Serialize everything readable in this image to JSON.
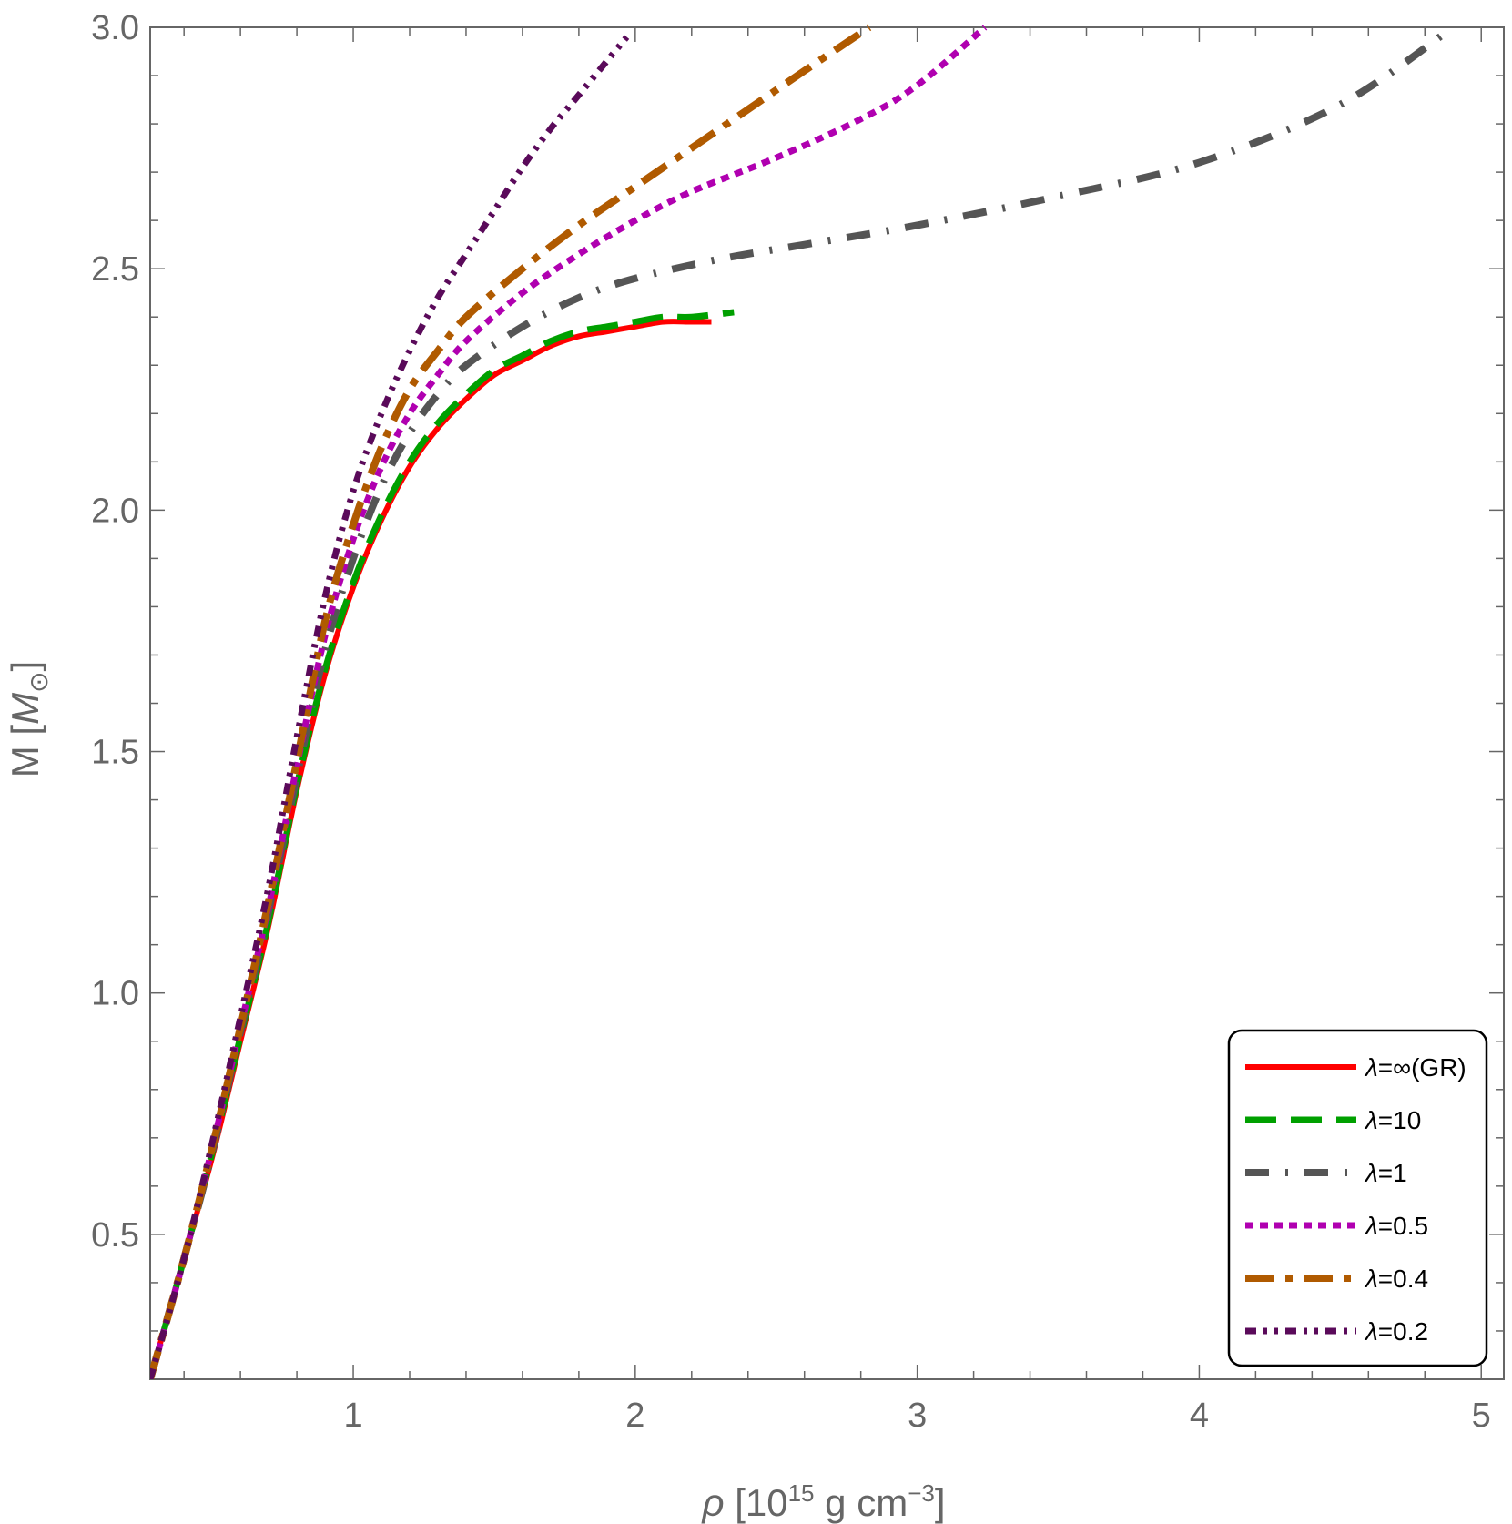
{
  "chart_data": {
    "type": "line",
    "xlabel": {
      "symbol": "ρ",
      "text": " [10",
      "sup1": "15",
      "mid": " g cm",
      "sup2": "−3",
      "end": "]"
    },
    "ylabel": {
      "text": "M [",
      "symbol": "M",
      "sub": "⊙",
      "end": "]"
    },
    "xlim": [
      0.28,
      5.08
    ],
    "ylim": [
      0.2,
      3.0
    ],
    "xticks": [
      {
        "value": 1,
        "label": "1"
      },
      {
        "value": 2,
        "label": "2"
      },
      {
        "value": 3,
        "label": "3"
      },
      {
        "value": 4,
        "label": "4"
      },
      {
        "value": 5,
        "label": "5"
      }
    ],
    "yticks": [
      {
        "value": 0.5,
        "label": "0.5"
      },
      {
        "value": 1.0,
        "label": "1.0"
      },
      {
        "value": 1.5,
        "label": "1.5"
      },
      {
        "value": 2.0,
        "label": "2.0"
      },
      {
        "value": 2.5,
        "label": "2.5"
      },
      {
        "value": 3.0,
        "label": "3.0"
      }
    ],
    "legend_position": "bottom-right",
    "series": [
      {
        "name": "λ=∞(GR)",
        "color": "#ff0000",
        "dash": "solid",
        "x": [
          0.28,
          0.4,
          0.5,
          0.6,
          0.7,
          0.8,
          0.9,
          1.0,
          1.1,
          1.2,
          1.3,
          1.4,
          1.5,
          1.6,
          1.7,
          1.8,
          1.9,
          2.0,
          2.1,
          2.2,
          2.27
        ],
        "y": [
          0.2,
          0.45,
          0.66,
          0.9,
          1.14,
          1.42,
          1.66,
          1.84,
          1.98,
          2.09,
          2.17,
          2.23,
          2.28,
          2.31,
          2.34,
          2.36,
          2.37,
          2.38,
          2.39,
          2.39,
          2.39
        ]
      },
      {
        "name": "λ=10",
        "color": "#00a000",
        "dash": "long-dash",
        "x": [
          0.28,
          0.4,
          0.5,
          0.6,
          0.7,
          0.8,
          0.9,
          1.0,
          1.1,
          1.2,
          1.3,
          1.4,
          1.5,
          1.6,
          1.7,
          1.8,
          1.9,
          2.0,
          2.1,
          2.2,
          2.35
        ],
        "y": [
          0.2,
          0.45,
          0.67,
          0.91,
          1.15,
          1.43,
          1.67,
          1.85,
          1.99,
          2.1,
          2.18,
          2.24,
          2.29,
          2.32,
          2.35,
          2.37,
          2.38,
          2.39,
          2.4,
          2.4,
          2.41
        ]
      },
      {
        "name": "λ=1",
        "color": "#555555",
        "dash": "dash-dot",
        "x": [
          0.28,
          0.4,
          0.5,
          0.6,
          0.7,
          0.8,
          0.9,
          1.0,
          1.1,
          1.2,
          1.3,
          1.4,
          1.6,
          1.8,
          2.0,
          2.3,
          2.6,
          3.0,
          3.5,
          4.0,
          4.5,
          4.9
        ],
        "y": [
          0.2,
          0.45,
          0.67,
          0.92,
          1.17,
          1.45,
          1.71,
          1.9,
          2.05,
          2.16,
          2.24,
          2.3,
          2.38,
          2.44,
          2.48,
          2.52,
          2.55,
          2.59,
          2.65,
          2.72,
          2.84,
          3.0
        ]
      },
      {
        "name": "λ=0.5",
        "color": "#b000b0",
        "dash": "dotted",
        "x": [
          0.28,
          0.4,
          0.5,
          0.6,
          0.7,
          0.8,
          0.9,
          1.0,
          1.1,
          1.2,
          1.3,
          1.4,
          1.6,
          1.8,
          2.0,
          2.2,
          2.5,
          2.8,
          3.0,
          3.24
        ],
        "y": [
          0.2,
          0.45,
          0.68,
          0.93,
          1.18,
          1.47,
          1.74,
          1.94,
          2.09,
          2.2,
          2.28,
          2.35,
          2.45,
          2.53,
          2.6,
          2.66,
          2.73,
          2.81,
          2.88,
          3.0
        ]
      },
      {
        "name": "λ=0.4",
        "color": "#b05a00",
        "dash": "long-dash-dot",
        "x": [
          0.28,
          0.4,
          0.5,
          0.6,
          0.7,
          0.8,
          0.9,
          1.0,
          1.1,
          1.2,
          1.3,
          1.4,
          1.6,
          1.8,
          2.0,
          2.2,
          2.4,
          2.6,
          2.83
        ],
        "y": [
          0.2,
          0.45,
          0.68,
          0.93,
          1.19,
          1.48,
          1.77,
          1.97,
          2.13,
          2.25,
          2.33,
          2.4,
          2.5,
          2.59,
          2.67,
          2.75,
          2.83,
          2.91,
          3.0
        ]
      },
      {
        "name": "λ=0.2",
        "color": "#5a0a5a",
        "dash": "dash-dot-dot",
        "x": [
          0.28,
          0.4,
          0.5,
          0.6,
          0.7,
          0.8,
          0.9,
          1.0,
          1.1,
          1.2,
          1.3,
          1.4,
          1.5,
          1.6,
          1.7,
          1.8,
          1.97
        ],
        "y": [
          0.2,
          0.45,
          0.69,
          0.95,
          1.22,
          1.53,
          1.82,
          2.04,
          2.2,
          2.33,
          2.44,
          2.53,
          2.62,
          2.71,
          2.79,
          2.86,
          2.98
        ]
      }
    ]
  }
}
